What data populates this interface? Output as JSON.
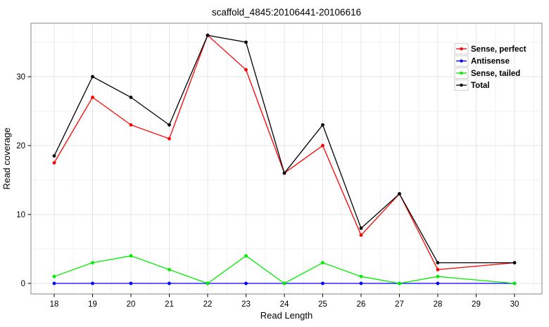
{
  "title": "scaffold_4845:20106441-20106616",
  "axes": {
    "x_label": "Read Length",
    "y_label": "Read coverage",
    "x_tick_labels": [
      "18",
      "19",
      "20",
      "21",
      "22",
      "23",
      "24",
      "25",
      "26",
      "27",
      "28",
      "29",
      "30"
    ],
    "y_tick_labels": [
      "0",
      "10",
      "20",
      "30"
    ]
  },
  "colors": {
    "sense_perfect": "#FF0000",
    "antisense": "#0000FF",
    "sense_tailed": "#00EE00",
    "total": "#000000",
    "panel_border": "#999999",
    "grid_major": "#E4E4E4",
    "grid_minor": "#F1F1F1",
    "legend_key_border": "#CCCCCC"
  },
  "chart_data": {
    "type": "line",
    "title": "scaffold_4845:20106441-20106616",
    "xlabel": "Read Length",
    "ylabel": "Read coverage",
    "x": [
      18,
      19,
      20,
      21,
      22,
      23,
      24,
      25,
      26,
      27,
      28,
      29,
      30
    ],
    "xlim": [
      17.4,
      30.7
    ],
    "ylim": [
      -1.5,
      37.8
    ],
    "x_ticks": [
      18,
      19,
      20,
      21,
      22,
      23,
      24,
      25,
      26,
      27,
      28,
      29,
      30
    ],
    "y_ticks": [
      0,
      10,
      20,
      30
    ],
    "y_minor_ticks": [
      5,
      15,
      25,
      35
    ],
    "grid": true,
    "legend_position": "top-right-inside",
    "note": "no data points plotted at read length 29; lines connect 28 to 30 directly",
    "series": [
      {
        "name": "Sense, perfect",
        "color": "#FF0000",
        "values": [
          17.5,
          27,
          23,
          21,
          36,
          31,
          16,
          20,
          7,
          13,
          2,
          null,
          3
        ]
      },
      {
        "name": "Antisense",
        "color": "#0000FF",
        "values": [
          0,
          0,
          0,
          0,
          0,
          0,
          0,
          0,
          0,
          0,
          0,
          null,
          0
        ]
      },
      {
        "name": "Sense, tailed",
        "color": "#00EE00",
        "values": [
          1,
          3,
          4,
          2,
          0,
          4,
          0,
          3,
          1,
          0,
          1,
          null,
          0
        ]
      },
      {
        "name": "Total",
        "color": "#000000",
        "values": [
          18.5,
          30,
          27,
          23,
          36,
          35,
          16,
          23,
          8,
          13,
          3,
          null,
          3
        ]
      }
    ]
  }
}
